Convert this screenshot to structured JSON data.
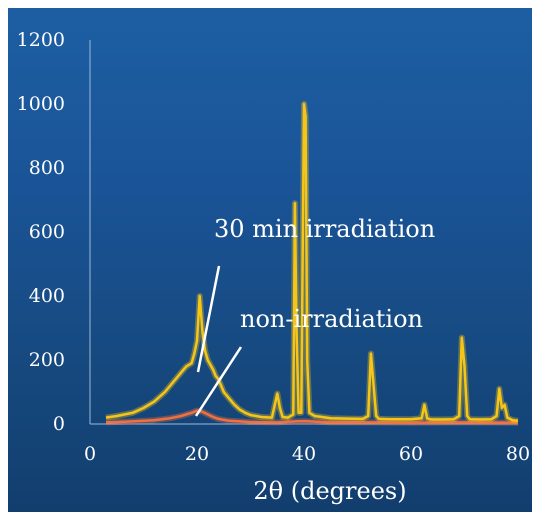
{
  "chart_data": {
    "type": "line",
    "xlabel": "2θ (degrees)",
    "ylabel": "",
    "xlim": [
      0,
      80
    ],
    "ylim": [
      0,
      1200
    ],
    "x_ticks": [
      0,
      20,
      40,
      60,
      80
    ],
    "y_ticks": [
      0,
      200,
      400,
      600,
      800,
      1000,
      1200
    ],
    "grid": false,
    "annotations": [
      "30 min irradiation",
      "non-irradiation"
    ],
    "colors": {
      "irradiated": "#f5c518",
      "non_irradiated": "#f07040",
      "pointer": "#ffffff"
    },
    "series": [
      {
        "key": "irradiated",
        "x": [
          3,
          5,
          8,
          10,
          12,
          14,
          16,
          17,
          18,
          19,
          19.5,
          20,
          20.5,
          21,
          21.5,
          22,
          23,
          23.5,
          24,
          24.5,
          25,
          26,
          27,
          28,
          29,
          30,
          32,
          34,
          35,
          35.5,
          36,
          37,
          38,
          38.3,
          38.6,
          39,
          39.5,
          40,
          40.3,
          40.6,
          41,
          42,
          45,
          48,
          51,
          52,
          52.5,
          53,
          53.5,
          54,
          56,
          58,
          60,
          62,
          62.5,
          63,
          63.5,
          64,
          66,
          68,
          69,
          69.5,
          70,
          70.5,
          71,
          73,
          75,
          76,
          76.5,
          77,
          77.5,
          78,
          79,
          80
        ],
        "values": [
          20,
          25,
          35,
          50,
          70,
          100,
          140,
          160,
          180,
          190,
          220,
          260,
          400,
          290,
          230,
          200,
          170,
          150,
          140,
          120,
          100,
          80,
          60,
          45,
          35,
          28,
          22,
          20,
          95,
          50,
          22,
          20,
          30,
          690,
          300,
          35,
          35,
          1000,
          960,
          200,
          35,
          25,
          18,
          17,
          16,
          25,
          220,
          120,
          25,
          16,
          15,
          15,
          15,
          18,
          60,
          18,
          15,
          14,
          14,
          15,
          25,
          270,
          180,
          25,
          15,
          14,
          15,
          25,
          110,
          50,
          60,
          20,
          12,
          10
        ]
      },
      {
        "key": "non_irradiated",
        "x": [
          3,
          8,
          12,
          15,
          17,
          19,
          20,
          21,
          22,
          23,
          24,
          26,
          28,
          30,
          35,
          38.5,
          40,
          45,
          53,
          60,
          70,
          80
        ],
        "values": [
          5,
          8,
          12,
          18,
          25,
          35,
          42,
          38,
          30,
          22,
          16,
          10,
          8,
          6,
          5,
          8,
          9,
          5,
          5,
          4,
          5,
          4
        ]
      }
    ]
  }
}
